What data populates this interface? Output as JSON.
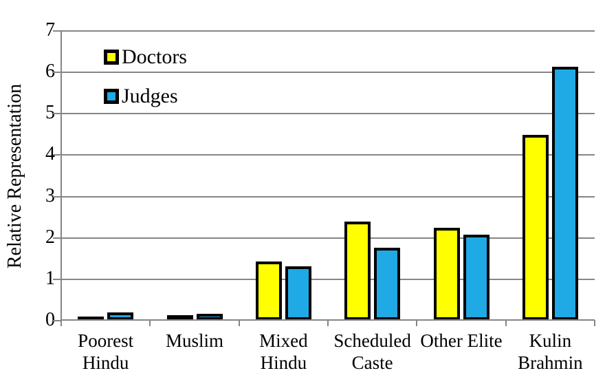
{
  "colors": {
    "background": "#ffffff",
    "grid": "#858585",
    "bar_border": "#000000",
    "doctors": "#ffff00",
    "judges": "#1fa9e5"
  },
  "y_axis": {
    "title": "Relative Representation",
    "tick_labels": [
      "7",
      "6",
      "5",
      "4",
      "3",
      "2",
      "1",
      "0"
    ]
  },
  "legend": {
    "items": [
      {
        "label": "Doctors",
        "color": "#ffff00"
      },
      {
        "label": "Judges",
        "color": "#1fa9e5"
      }
    ]
  },
  "chart_data": {
    "type": "bar",
    "title": "",
    "xlabel": "",
    "ylabel": "Relative Representation",
    "ylim": [
      0,
      7
    ],
    "ytick_step": 1,
    "grid": true,
    "legend_position": "top-left-inside",
    "categories": [
      "Poorest Hindu",
      "Muslim",
      "Mixed Hindu",
      "Scheduled Caste",
      "Other Elite",
      "Kulin Brahmin"
    ],
    "category_label_lines": [
      [
        "Poorest",
        "Hindu"
      ],
      [
        "Muslim"
      ],
      [
        "Mixed",
        "Hindu"
      ],
      [
        "Scheduled",
        "Caste"
      ],
      [
        "Other Elite"
      ],
      [
        "Kulin",
        "Brahmin"
      ]
    ],
    "series": [
      {
        "name": "Doctors",
        "color": "#ffff00",
        "values": [
          0.08,
          0.12,
          1.42,
          2.38,
          2.23,
          4.47
        ]
      },
      {
        "name": "Judges",
        "color": "#1fa9e5",
        "values": [
          0.19,
          0.15,
          1.3,
          1.75,
          2.07,
          6.12
        ]
      }
    ],
    "bar_style": {
      "border_color": "#000000",
      "border_px": 4
    }
  }
}
